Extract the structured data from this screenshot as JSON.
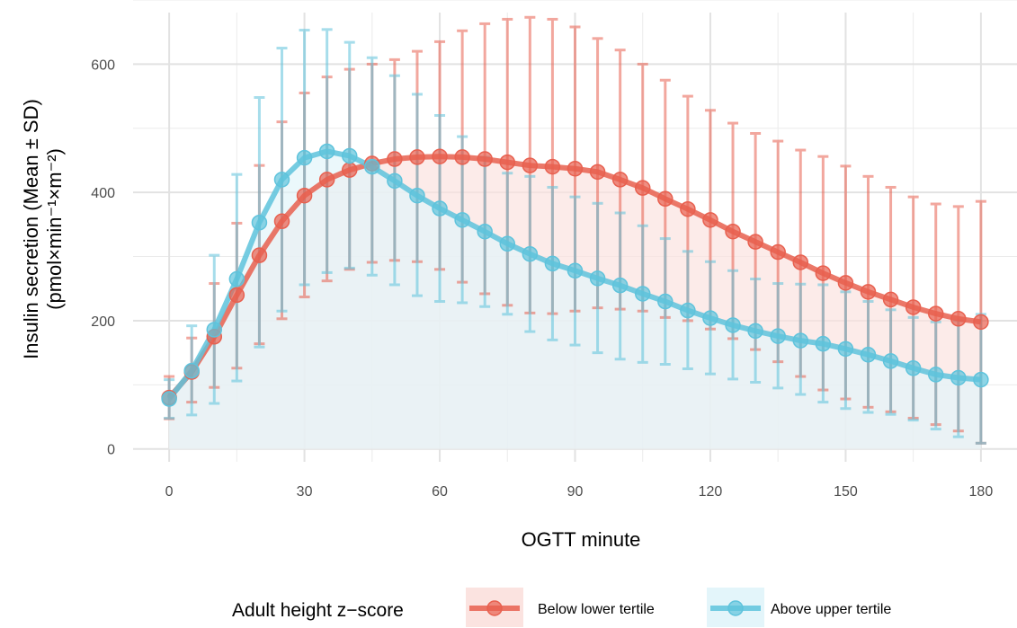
{
  "chart_data": {
    "type": "line",
    "xlabel": "OGTT minute",
    "ylabel_line1": "Insulin secretion (Mean ± SD)",
    "ylabel_line2": "(pmol×min⁻¹×m⁻²)",
    "xlim": [
      -8,
      188
    ],
    "ylim": [
      -20,
      700
    ],
    "x_ticks": [
      0,
      30,
      60,
      90,
      120,
      150,
      180
    ],
    "x_tick_labels": [
      "0",
      "30",
      "60",
      "90",
      "120",
      "150",
      "180"
    ],
    "y_ticks": [
      0,
      200,
      400,
      600
    ],
    "y_tick_labels": [
      "0",
      "200",
      "400",
      "600"
    ],
    "grid": true,
    "legend_position": "bottom",
    "legend_title": "Adult height z−score",
    "x": [
      0,
      5,
      10,
      15,
      20,
      25,
      30,
      35,
      40,
      45,
      50,
      55,
      60,
      65,
      70,
      75,
      80,
      85,
      90,
      95,
      100,
      105,
      110,
      115,
      120,
      125,
      130,
      135,
      140,
      145,
      150,
      155,
      160,
      165,
      170,
      175,
      180
    ],
    "series": [
      {
        "name": "Below lower tertile",
        "color": "#E8604F",
        "fill": "#FBE3E0",
        "mean": [
          80,
          120,
          175,
          240,
          302,
          355,
          395,
          420,
          435,
          445,
          452,
          455,
          456,
          455,
          452,
          447,
          442,
          440,
          437,
          432,
          420,
          407,
          390,
          374,
          357,
          339,
          323,
          307,
          291,
          274,
          259,
          245,
          233,
          221,
          211,
          203,
          198
        ],
        "upper": [
          113,
          173,
          258,
          352,
          442,
          510,
          555,
          580,
          592,
          600,
          607,
          620,
          635,
          652,
          663,
          670,
          673,
          670,
          658,
          640,
          622,
          600,
          575,
          550,
          528,
          508,
          492,
          480,
          466,
          456,
          441,
          425,
          408,
          393,
          382,
          378,
          386
        ],
        "lower": [
          47,
          73,
          96,
          126,
          164,
          203,
          237,
          262,
          280,
          291,
          294,
          292,
          280,
          260,
          242,
          224,
          212,
          211,
          215,
          220,
          218,
          215,
          205,
          200,
          187,
          172,
          155,
          136,
          113,
          92,
          78,
          65,
          58,
          48,
          38,
          28,
          9
        ]
      },
      {
        "name": "Above upper tertile",
        "color": "#5EC3DC",
        "fill": "#E3F5FA",
        "mean": [
          78,
          122,
          186,
          265,
          353,
          420,
          454,
          464,
          457,
          440,
          418,
          395,
          375,
          357,
          339,
          320,
          304,
          289,
          278,
          266,
          255,
          242,
          230,
          216,
          204,
          193,
          184,
          176,
          169,
          164,
          156,
          147,
          137,
          126,
          116,
          111,
          108
        ],
        "upper": [
          108,
          192,
          302,
          428,
          548,
          625,
          653,
          654,
          634,
          610,
          582,
          553,
          520,
          487,
          455,
          430,
          425,
          408,
          393,
          383,
          368,
          348,
          328,
          308,
          292,
          278,
          265,
          258,
          257,
          256,
          245,
          230,
          217,
          205,
          198,
          200,
          210
        ],
        "lower": [
          48,
          53,
          71,
          106,
          159,
          215,
          256,
          275,
          282,
          271,
          256,
          239,
          230,
          228,
          222,
          210,
          183,
          170,
          162,
          150,
          140,
          135,
          132,
          125,
          117,
          109,
          104,
          95,
          85,
          73,
          63,
          57,
          54,
          45,
          31,
          19,
          9
        ]
      }
    ]
  }
}
